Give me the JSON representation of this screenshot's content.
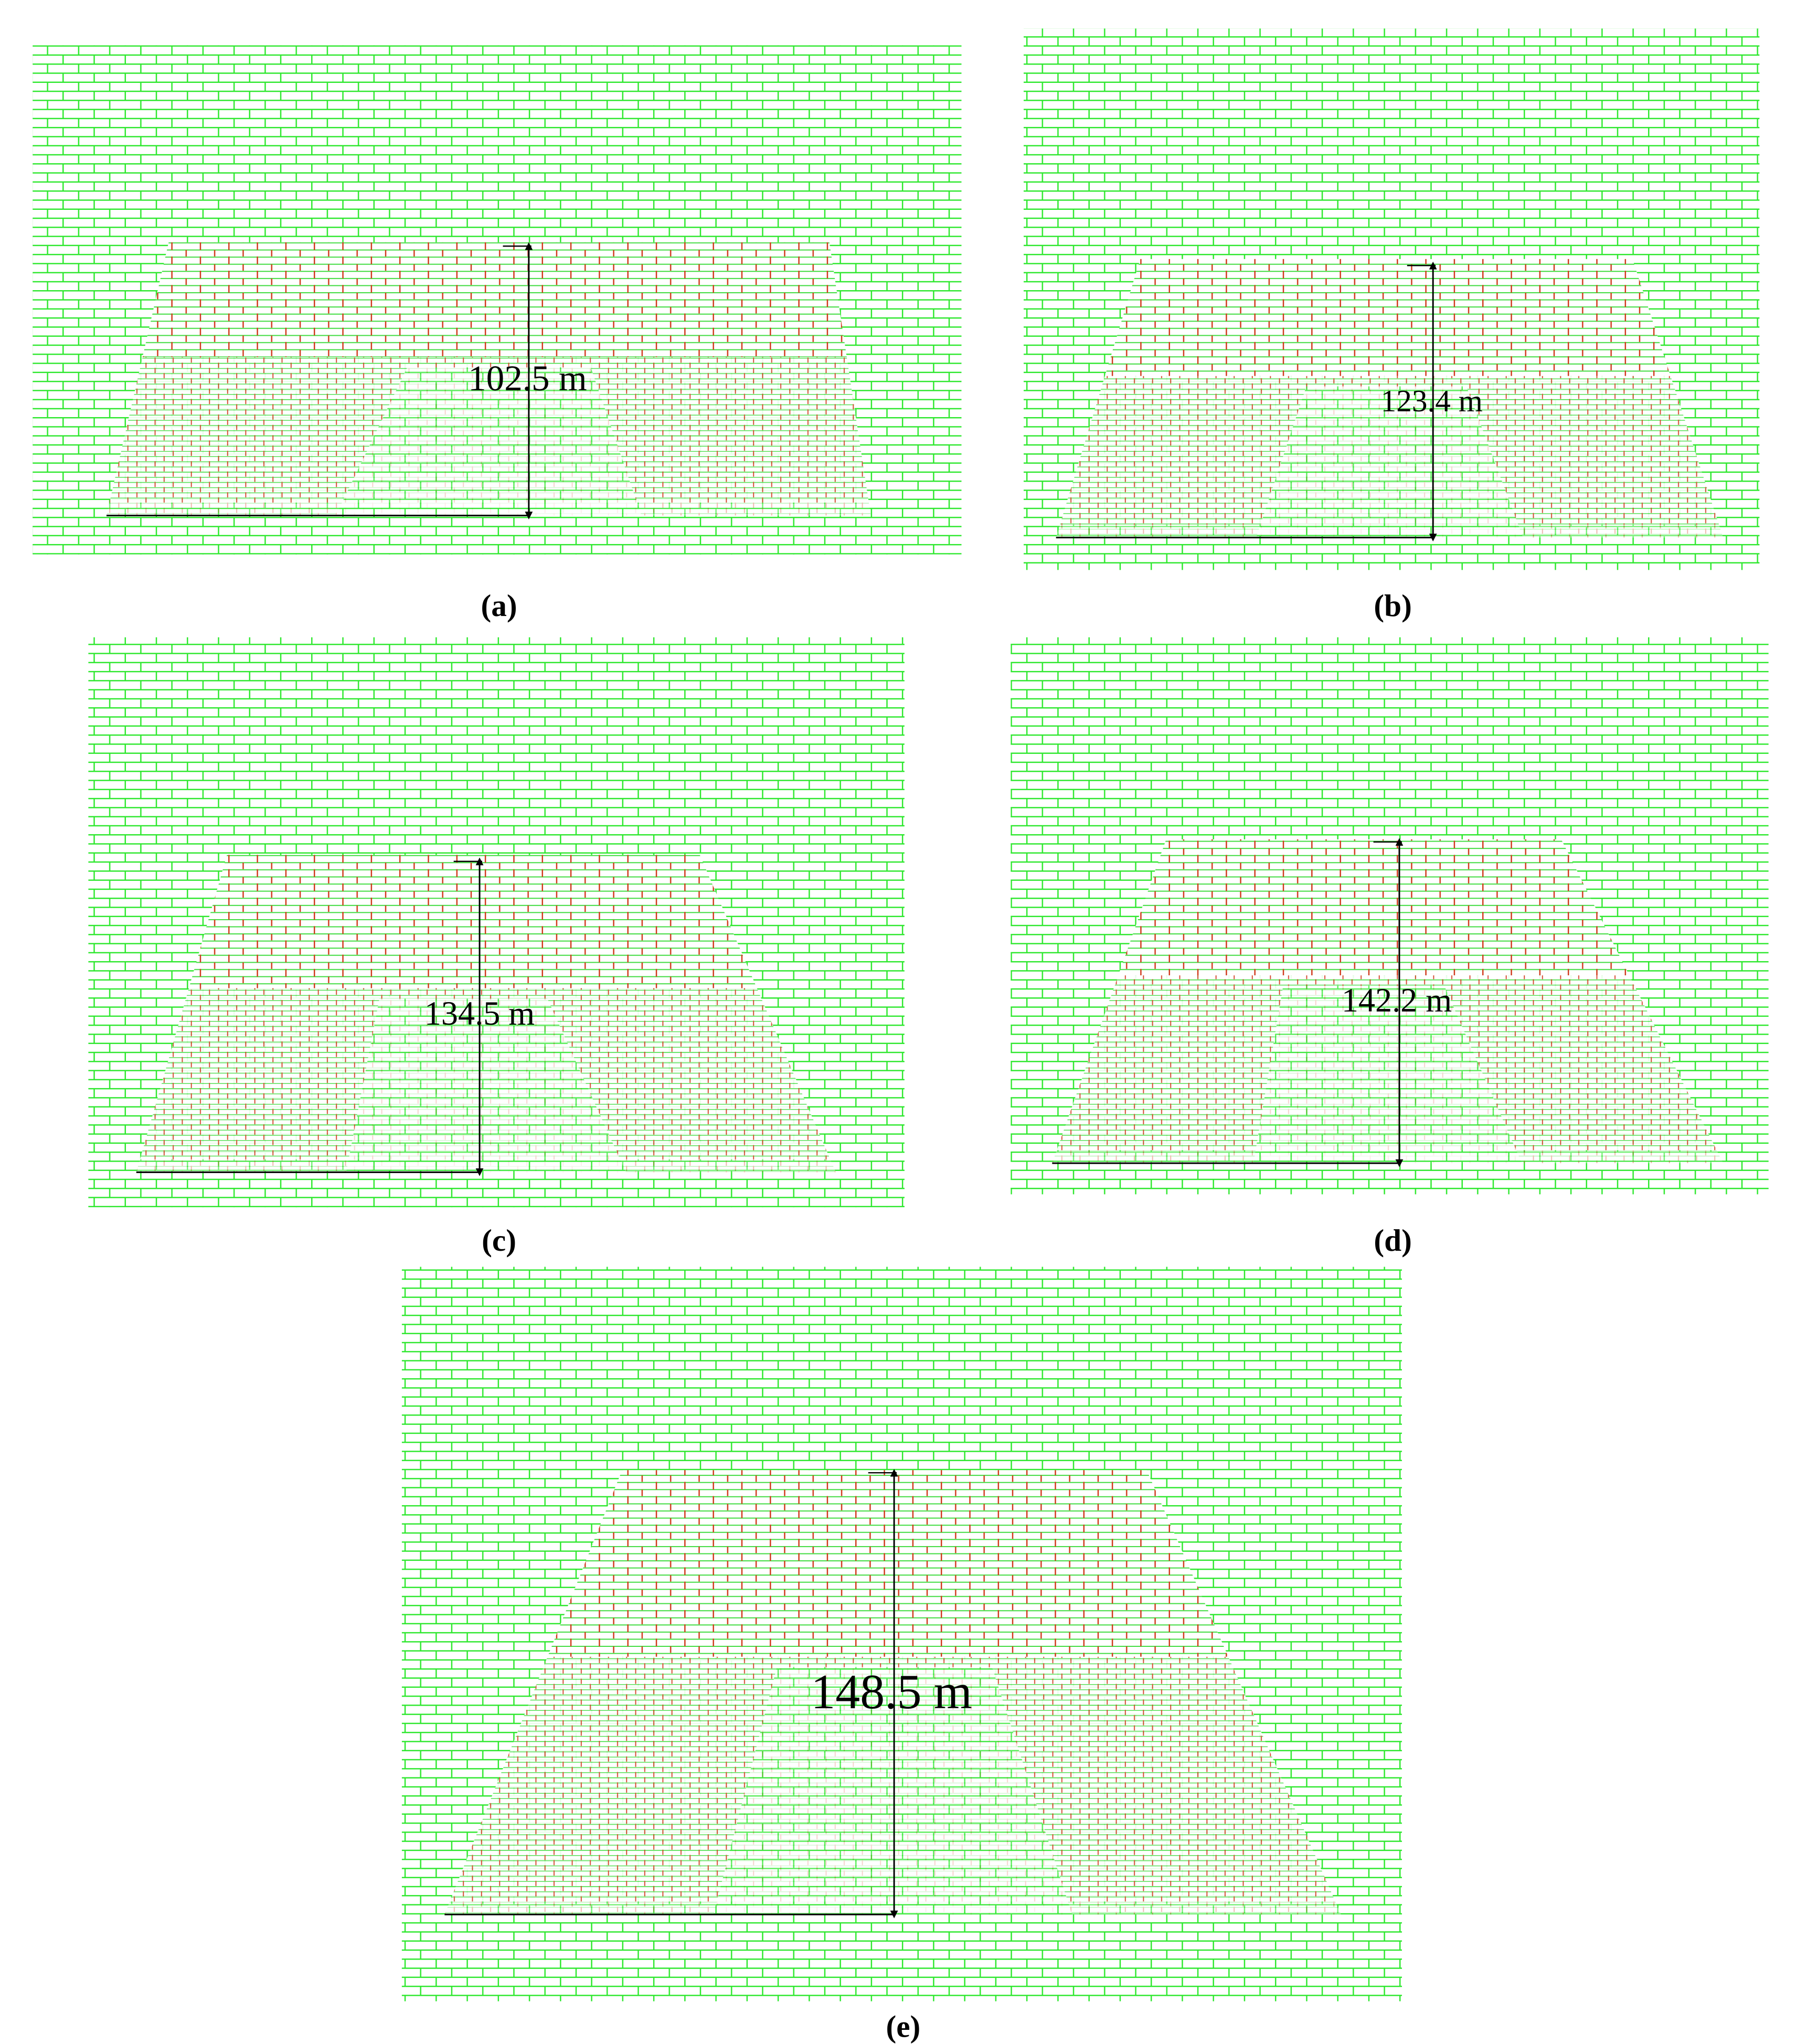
{
  "panels": [
    {
      "caption": "(a)",
      "height_label": "102.5 m"
    },
    {
      "caption": "(b)",
      "height_label": "123.4 m"
    },
    {
      "caption": "(c)",
      "height_label": "134.5 m"
    },
    {
      "caption": "(d)",
      "height_label": "142.2 m"
    },
    {
      "caption": "(e)",
      "height_label": "148.5 m"
    }
  ]
}
